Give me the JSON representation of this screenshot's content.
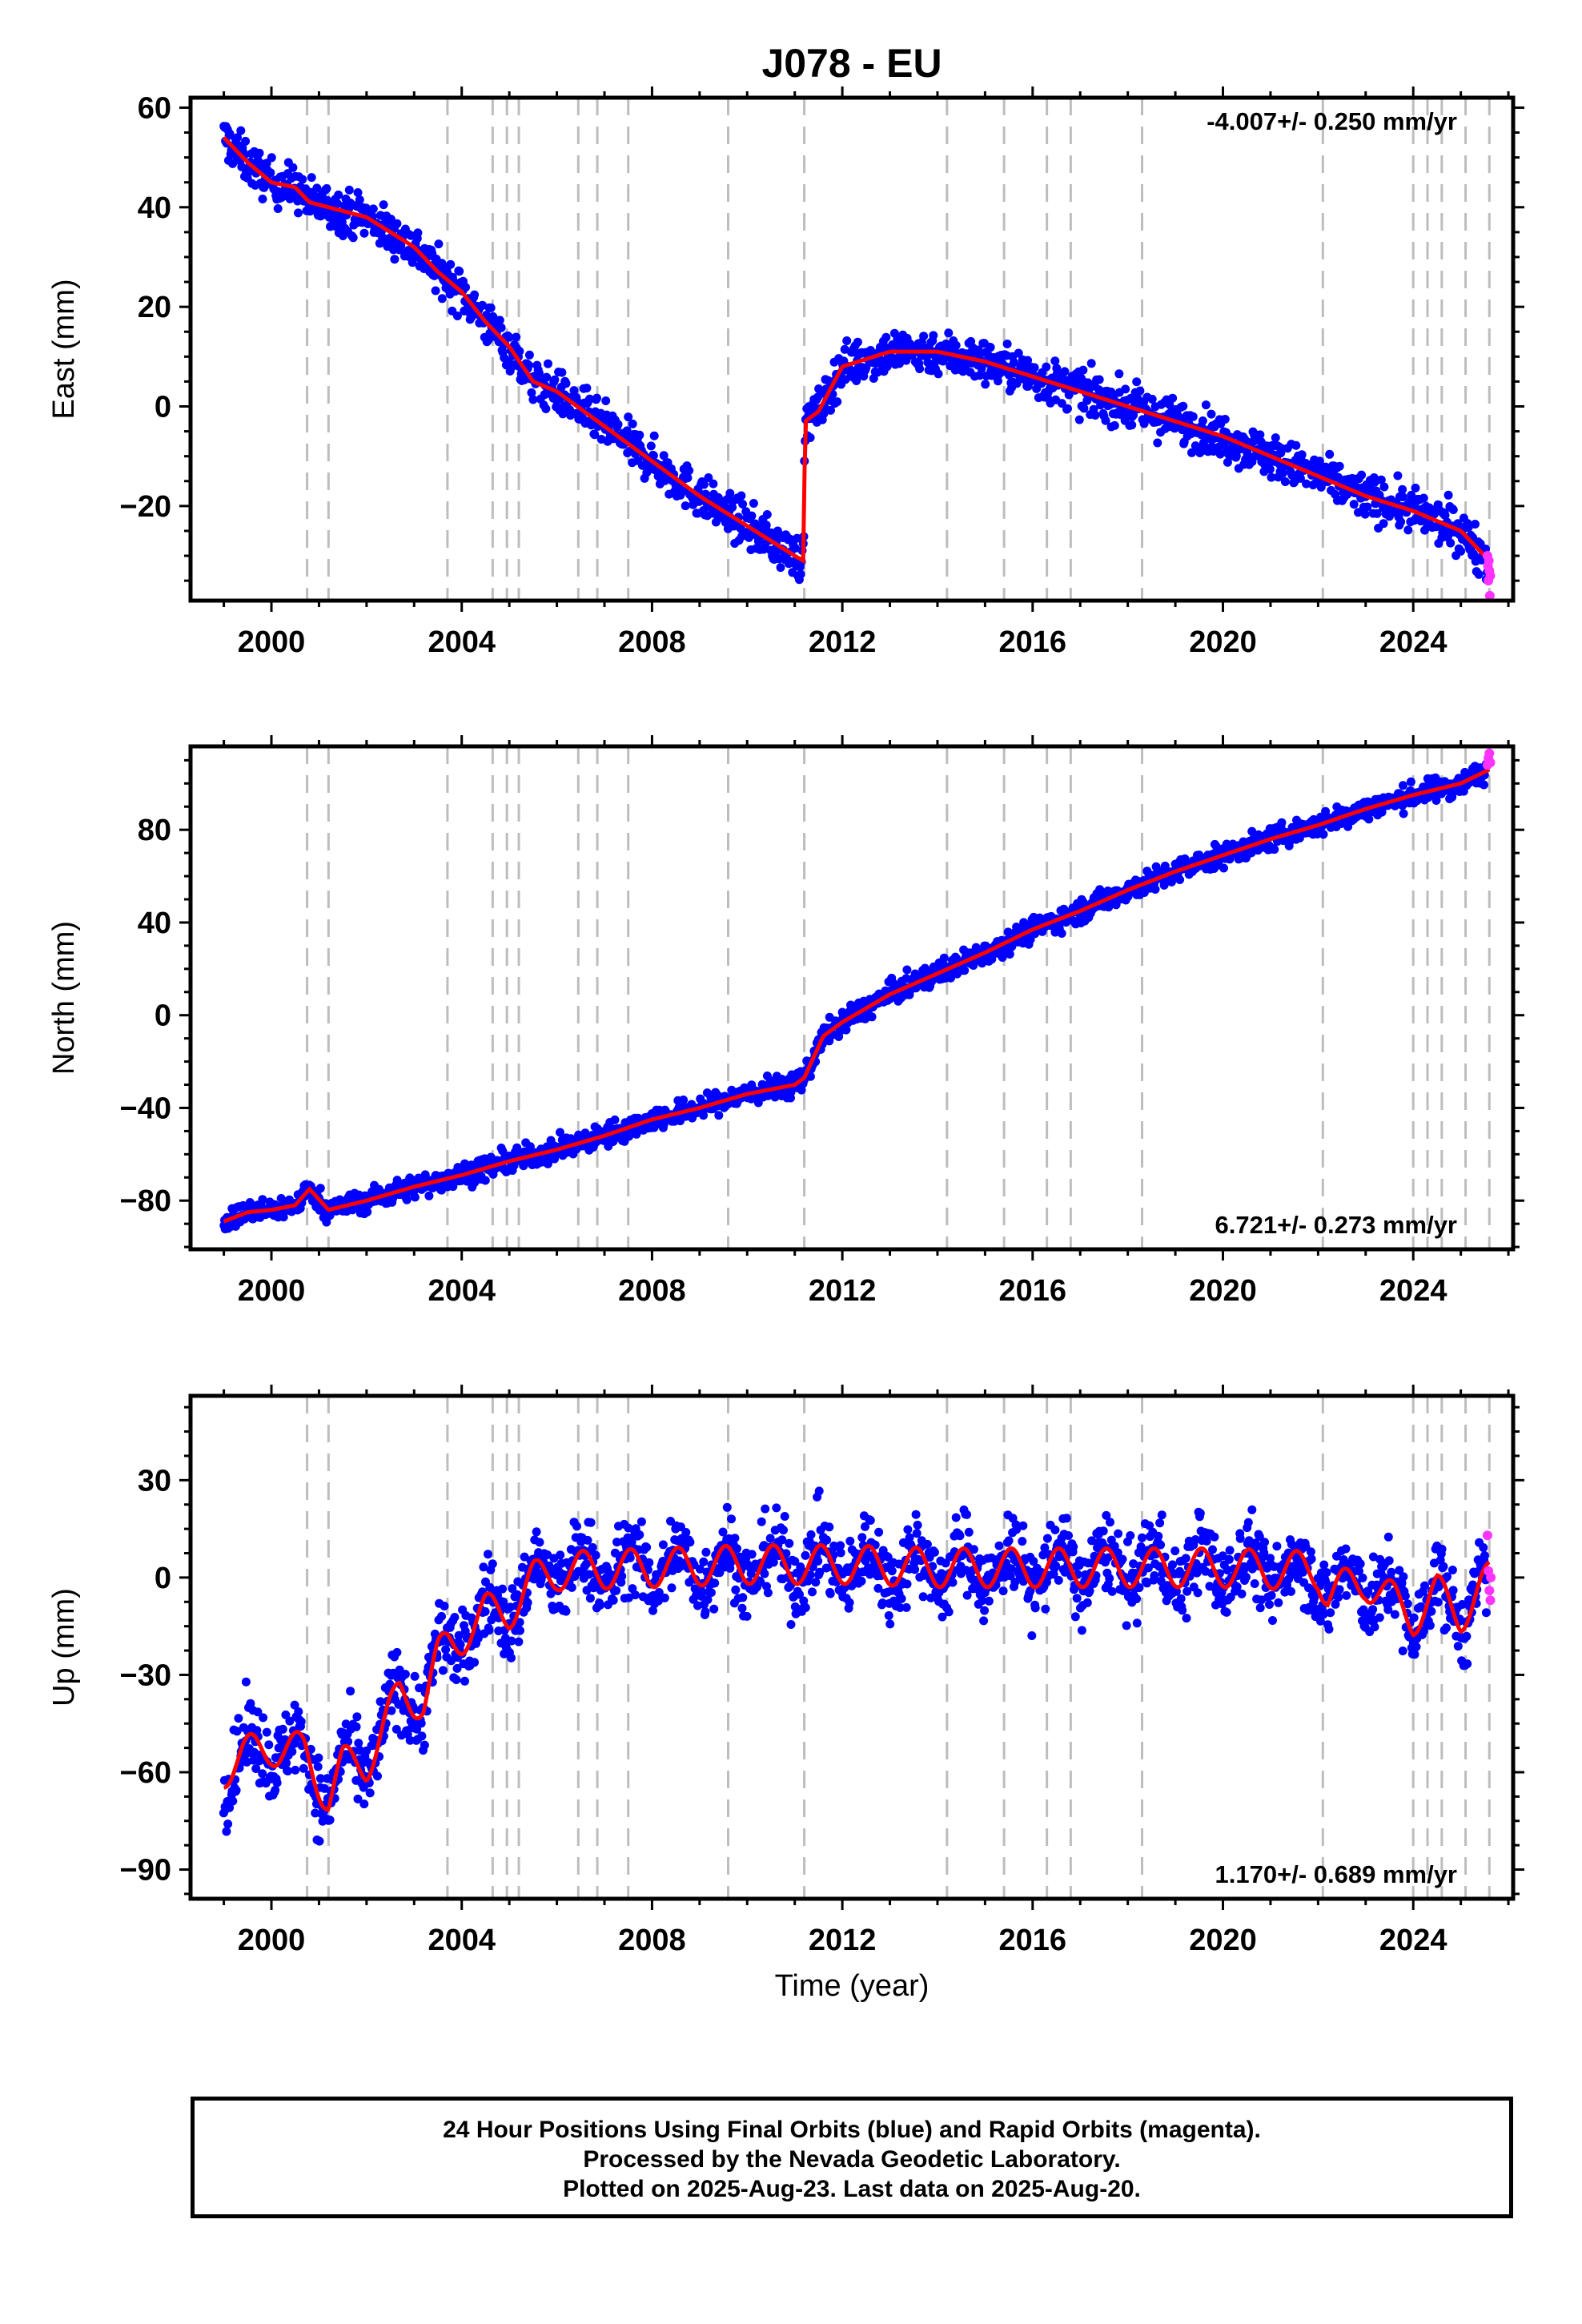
{
  "title": "J078 - EU",
  "x_label": "Time (year)",
  "footer": {
    "line1": "24 Hour Positions Using Final Orbits (blue) and Rapid Orbits (magenta).",
    "line2": "Processed by the Nevada Geodetic Laboratory.",
    "line3": "Plotted on 2025-Aug-23. Last data on 2025-Aug-20."
  },
  "colors": {
    "final_orbits": "#0000ff",
    "rapid_orbits": "#ff33ff",
    "model_fit": "#ff0000",
    "event_lines": "#bdbdbd"
  },
  "chart_data": [
    {
      "type": "scatter",
      "panel": "east",
      "ylabel": "East (mm)",
      "rate_label": "-4.007+/- 0.250 mm/yr",
      "xlim": [
        1998.3,
        2026.1
      ],
      "ylim": [
        -39,
        62
      ],
      "xticks": [
        2000,
        2004,
        2008,
        2012,
        2016,
        2020,
        2024
      ],
      "xtick_labels": [
        "2000",
        "2004",
        "2008",
        "2012",
        "2016",
        "2020",
        "2024"
      ],
      "yticks": [
        -20,
        0,
        20,
        40,
        60
      ],
      "ytick_labels": [
        "−20",
        "0",
        "20",
        "40",
        "60"
      ],
      "events": [
        2000.75,
        2001.2,
        2003.7,
        2004.65,
        2004.95,
        2005.2,
        2006.45,
        2006.85,
        2007.5,
        2009.6,
        2011.2,
        2014.2,
        2015.4,
        2016.3,
        2016.8,
        2018.3,
        2022.1,
        2024.0,
        2024.3,
        2024.6,
        2025.1,
        2025.6
      ],
      "fit": {
        "x": [
          1999.0,
          1999.5,
          2000.0,
          2000.5,
          2000.8,
          2001.2,
          2002.0,
          2003.0,
          2003.5,
          2004.0,
          2004.5,
          2005.0,
          2005.5,
          2006.0,
          2007.0,
          2008.0,
          2009.0,
          2010.0,
          2011.0,
          2011.18,
          2011.22,
          2011.5,
          2012.0,
          2013.0,
          2014.0,
          2015.0,
          2016.0,
          2017.0,
          2018.0,
          2019.0,
          2020.0,
          2021.0,
          2022.0,
          2023.0,
          2024.0,
          2025.0,
          2025.6
        ],
        "y": [
          54,
          49,
          45,
          44,
          41,
          40,
          38,
          32,
          27,
          23,
          17,
          12,
          5,
          3,
          -4,
          -11,
          -18,
          -24,
          -30,
          -31,
          -3,
          -1,
          8,
          11,
          11,
          9,
          6,
          3,
          0,
          -3,
          -6,
          -10,
          -14,
          -18,
          -21,
          -25,
          -31
        ]
      },
      "final_orbits": {
        "x_start": 1999.0,
        "x_end": 2025.55,
        "count": 1700,
        "scatter_mm": 2.2
      },
      "rapid_orbits": {
        "x": [
          2025.56,
          2025.57,
          2025.58,
          2025.59,
          2025.6,
          2025.61,
          2025.62
        ],
        "y": [
          -30,
          -32,
          -35,
          -31,
          -33,
          -38,
          -34
        ]
      }
    },
    {
      "type": "scatter",
      "panel": "north",
      "ylabel": "North (mm)",
      "rate_label": "6.721+/- 0.273 mm/yr",
      "xlim": [
        1998.3,
        2026.1
      ],
      "ylim": [
        -101,
        116
      ],
      "xticks": [
        2000,
        2004,
        2008,
        2012,
        2016,
        2020,
        2024
      ],
      "xtick_labels": [
        "2000",
        "2004",
        "2008",
        "2012",
        "2016",
        "2020",
        "2024"
      ],
      "yticks": [
        -80,
        -40,
        0,
        40,
        80
      ],
      "ytick_labels": [
        "−80",
        "−40",
        "0",
        "40",
        "80"
      ],
      "events": [
        2000.75,
        2001.2,
        2003.7,
        2004.65,
        2004.95,
        2005.2,
        2006.45,
        2006.85,
        2007.5,
        2009.6,
        2011.2,
        2014.2,
        2015.4,
        2016.3,
        2016.8,
        2018.3,
        2022.1,
        2024.0,
        2024.3,
        2024.6,
        2025.1,
        2025.6
      ],
      "fit": {
        "x": [
          1999.0,
          1999.5,
          2000.0,
          2000.5,
          2000.8,
          2001.2,
          2002.0,
          2003.0,
          2004.0,
          2005.0,
          2006.0,
          2007.0,
          2008.0,
          2009.0,
          2010.0,
          2011.0,
          2011.2,
          2011.6,
          2012.0,
          2013.0,
          2014.0,
          2015.0,
          2016.0,
          2017.0,
          2018.0,
          2019.0,
          2020.0,
          2021.0,
          2022.0,
          2023.0,
          2024.0,
          2025.0,
          2025.6
        ],
        "y": [
          -89,
          -85,
          -84,
          -82,
          -75,
          -84,
          -80,
          -74,
          -69,
          -63,
          -58,
          -52,
          -45,
          -40,
          -34,
          -30,
          -27,
          -9,
          -3,
          9,
          18,
          27,
          37,
          45,
          54,
          62,
          69,
          76,
          82,
          89,
          95,
          100,
          106
        ]
      },
      "final_orbits": {
        "x_start": 1999.0,
        "x_end": 2025.55,
        "count": 1700,
        "scatter_mm": 2.5
      },
      "rapid_orbits": {
        "x": [
          2025.56,
          2025.58,
          2025.6,
          2025.62
        ],
        "y": [
          108,
          111,
          113,
          109
        ]
      }
    },
    {
      "type": "scatter",
      "panel": "up",
      "ylabel": "Up (mm)",
      "rate_label": "1.170+/- 0.689 mm/yr",
      "xlim": [
        1998.3,
        2026.1
      ],
      "ylim": [
        -99,
        56
      ],
      "xticks": [
        2000,
        2004,
        2008,
        2012,
        2016,
        2020,
        2024
      ],
      "xtick_labels": [
        "2000",
        "2004",
        "2008",
        "2012",
        "2016",
        "2020",
        "2024"
      ],
      "yticks": [
        -90,
        -60,
        -30,
        0,
        30
      ],
      "ytick_labels": [
        "−90",
        "−60",
        "−30",
        "0",
        "30"
      ],
      "events": [
        2000.75,
        2001.2,
        2003.7,
        2004.65,
        2004.95,
        2005.2,
        2006.45,
        2006.85,
        2007.5,
        2009.6,
        2011.2,
        2014.2,
        2015.4,
        2016.3,
        2016.8,
        2018.3,
        2022.1,
        2024.0,
        2024.3,
        2024.6,
        2025.1,
        2025.6
      ],
      "fit": {
        "x": [
          1999.0,
          1999.4,
          2000.0,
          2000.7,
          2001.2,
          2001.5,
          2002.0,
          2002.7,
          2003.2,
          2003.5,
          2003.7,
          2004.0,
          2004.5,
          2005.0,
          2005.5,
          2006.0,
          2008.0,
          2010.0,
          2012.0,
          2014.0,
          2016.0,
          2018.0,
          2020.0,
          2022.0,
          2022.2,
          2023.0,
          2024.0,
          2024.5,
          2025.0,
          2025.6
        ],
        "y": [
          -59,
          -55,
          -52,
          -54,
          -68,
          -58,
          -57,
          -36,
          -38,
          -25,
          -21,
          -18,
          -11,
          -10,
          -1,
          2,
          3,
          4,
          4,
          3,
          3,
          3,
          3,
          2,
          -5,
          -1,
          -12,
          -5,
          -11,
          -1
        ]
      },
      "seasonal_amplitude_mm": 6,
      "final_orbits": {
        "x_start": 1999.0,
        "x_end": 2025.55,
        "count": 1800,
        "scatter_mm": 6
      },
      "rapid_orbits": {
        "x": [
          2025.56,
          2025.58,
          2025.6,
          2025.62,
          2025.63
        ],
        "y": [
          13,
          2,
          -4,
          -7,
          0
        ]
      }
    }
  ]
}
